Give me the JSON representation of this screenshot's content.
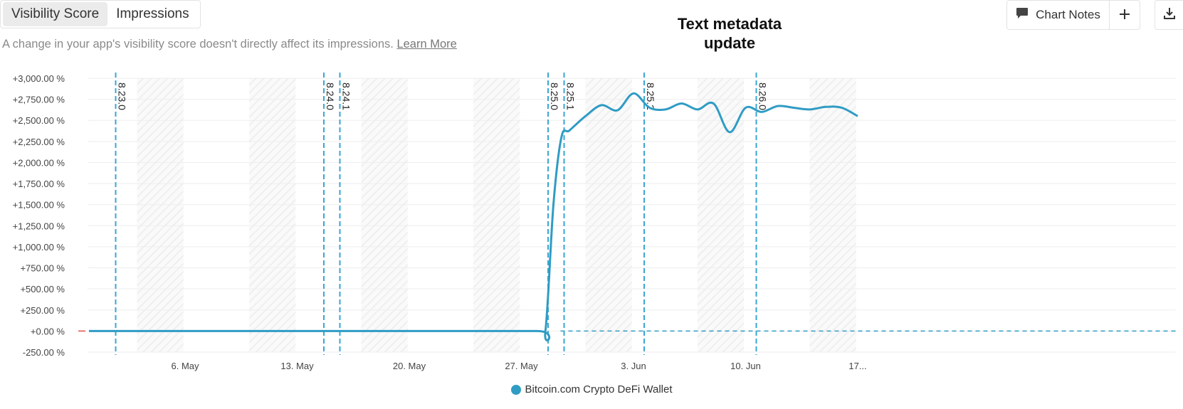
{
  "tabs": [
    {
      "label": "Visibility Score",
      "active": true
    },
    {
      "label": "Impressions",
      "active": false
    }
  ],
  "subtitle": {
    "text": "A change in your app's visibility score doesn't directly affect its impressions.",
    "link": "Learn More"
  },
  "annotation": {
    "line1": "Text metadata",
    "line2": "update"
  },
  "toolbar": {
    "notes_label": "Chart Notes",
    "notes_icon": "comment-icon",
    "add_icon": "plus-icon",
    "download_icon": "download-icon"
  },
  "colors": {
    "series": "#2f9cc4",
    "marker": "#3aa6d3",
    "grid": "#eeeeee",
    "hatch": "#efefef"
  },
  "chart_data": {
    "type": "line",
    "ylabel": "",
    "xlabel": "",
    "ylim": [
      -250,
      3000
    ],
    "yticks": [
      -250,
      0,
      250,
      500,
      750,
      1000,
      1250,
      1500,
      1750,
      2000,
      2250,
      2500,
      2750,
      3000
    ],
    "ytick_labels": [
      "-250.00 %",
      "+0.00 %",
      "+250.00 %",
      "+500.00 %",
      "+750.00 %",
      "+1,000.00 %",
      "+1,250.00 %",
      "+1,500.00 %",
      "+1,750.00 %",
      "+2,000.00 %",
      "+2,250.00 %",
      "+2,500.00 %",
      "+2,750.00 %",
      "+3,000.00 %"
    ],
    "x_domain": [
      "2024-04-30",
      "2024-06-17"
    ],
    "xticks": [
      {
        "date": "2024-05-06",
        "label": "6. May"
      },
      {
        "date": "2024-05-13",
        "label": "13. May"
      },
      {
        "date": "2024-05-20",
        "label": "20. May"
      },
      {
        "date": "2024-05-27",
        "label": "27. May"
      },
      {
        "date": "2024-06-03",
        "label": "3. Jun"
      },
      {
        "date": "2024-06-10",
        "label": "10. Jun"
      },
      {
        "date": "2024-06-17",
        "label": "17..."
      }
    ],
    "weekends": [
      [
        "2024-05-03",
        "2024-05-05"
      ],
      [
        "2024-05-10",
        "2024-05-12"
      ],
      [
        "2024-05-17",
        "2024-05-19"
      ],
      [
        "2024-05-24",
        "2024-05-26"
      ],
      [
        "2024-05-31",
        "2024-06-02"
      ],
      [
        "2024-06-07",
        "2024-06-09"
      ],
      [
        "2024-06-14",
        "2024-06-16"
      ]
    ],
    "version_markers": [
      {
        "date": "2024-05-01",
        "label": "8.23.0"
      },
      {
        "date": "2024-05-14",
        "label": "8.24.0"
      },
      {
        "date": "2024-05-15",
        "label": "8.24.1"
      },
      {
        "date": "2024-05-28",
        "label": "8.25.0"
      },
      {
        "date": "2024-05-29",
        "label": "8.25.1"
      },
      {
        "date": "2024-06-03",
        "label": "8.25.2"
      },
      {
        "date": "2024-06-10",
        "label": "8.26.0"
      }
    ],
    "series": [
      {
        "name": "Bitcoin.com Crypto DeFi Wallet",
        "x": [
          "2024-04-30",
          "2024-05-10",
          "2024-05-20",
          "2024-05-28",
          "2024-05-28 12:00",
          "2024-05-29",
          "2024-05-29 12:00",
          "2024-05-30",
          "2024-05-31",
          "2024-06-01",
          "2024-06-02",
          "2024-06-03",
          "2024-06-04",
          "2024-06-05",
          "2024-06-06",
          "2024-06-07",
          "2024-06-08",
          "2024-06-09",
          "2024-06-10",
          "2024-06-11",
          "2024-06-12",
          "2024-06-13",
          "2024-06-14",
          "2024-06-15",
          "2024-06-16",
          "2024-06-17"
        ],
        "values": [
          0,
          0,
          0,
          0,
          0,
          1500,
          2300,
          2380,
          2550,
          2680,
          2620,
          2820,
          2650,
          2630,
          2700,
          2630,
          2700,
          2360,
          2650,
          2600,
          2670,
          2650,
          2630,
          2660,
          2650,
          2550
        ]
      }
    ],
    "legend": [
      {
        "name": "Bitcoin.com Crypto DeFi Wallet"
      }
    ]
  }
}
